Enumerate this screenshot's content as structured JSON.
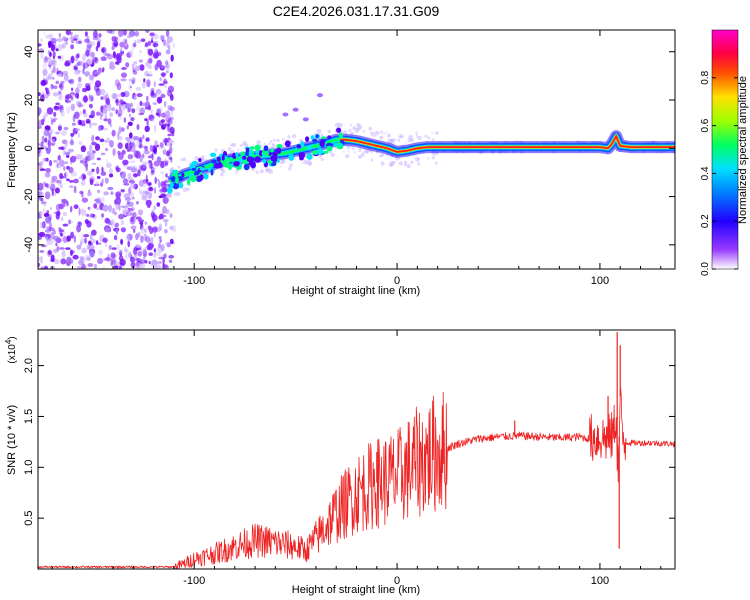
{
  "chart_data": [
    {
      "type": "heatmap",
      "title": "C2E4.2026.031.17.31.G09",
      "xlabel": "Height of straight line (km)",
      "ylabel": "Frequency (Hz)",
      "xlim": [
        -177,
        137
      ],
      "ylim": [
        -50,
        49
      ],
      "xticks": [
        -100,
        0,
        100
      ],
      "yticks": [
        -40,
        -20,
        0,
        20,
        40
      ],
      "colorbar": {
        "label": "Normalized spectral amplitude",
        "range": [
          0,
          1
        ],
        "ticks": [
          "0.0",
          "0.2",
          "0.4",
          "0.6",
          "0.8"
        ],
        "colormap": [
          "#ffffff",
          "#7a00ff",
          "#0000ff",
          "#00d8ff",
          "#00ff60",
          "#b0ff00",
          "#ffe000",
          "#ff3000",
          "#ff00aa"
        ]
      },
      "ridge": {
        "x": [
          -112,
          -105,
          -95,
          -85,
          -75,
          -65,
          -55,
          -45,
          -35,
          -30,
          -25,
          -20,
          -15,
          -10,
          -5,
          0,
          5,
          10,
          15,
          20,
          40,
          60,
          80,
          100,
          104,
          106,
          108,
          110,
          115,
          137
        ],
        "y": [
          -14,
          -11,
          -8,
          -5,
          -4,
          -3,
          -2,
          0,
          2,
          3.5,
          3.5,
          3,
          2,
          1,
          0,
          -1.5,
          -1,
          0,
          0.5,
          0.5,
          0.5,
          0.5,
          0.5,
          0.5,
          0,
          2,
          5,
          1,
          0.5,
          0.5
        ]
      }
    },
    {
      "type": "line",
      "xlabel": "Height of straight line (km)",
      "ylabel": "SNR (10 * v/v)",
      "scale_label": "(x10",
      "scale_exp": "4",
      "scale_close": ")",
      "xlim": [
        -177,
        137
      ],
      "ylim": [
        0,
        2.35
      ],
      "xticks": [
        -100,
        0,
        100
      ],
      "yticks": [
        0.5,
        1.0,
        1.5,
        2.0
      ],
      "color": "#ee2222",
      "envelope": {
        "x": [
          -177,
          -110,
          -105,
          -100,
          -90,
          -80,
          -70,
          -60,
          -50,
          -45,
          -40,
          -30,
          -20,
          -10,
          0,
          10,
          20,
          30,
          40,
          50,
          60,
          70,
          80,
          90,
          95,
          100,
          104,
          106,
          108,
          109,
          110,
          111,
          112,
          115,
          125,
          137
        ],
        "y": [
          0.02,
          0.02,
          0.05,
          0.1,
          0.15,
          0.22,
          0.28,
          0.26,
          0.22,
          0.18,
          0.3,
          0.55,
          0.75,
          0.85,
          0.9,
          1.05,
          1.15,
          1.23,
          1.28,
          1.3,
          1.31,
          1.3,
          1.29,
          1.3,
          1.28,
          1.3,
          1.28,
          1.3,
          1.5,
          0.9,
          1.7,
          1.3,
          1.25,
          1.24,
          1.24,
          1.23
        ]
      },
      "spikes": [
        {
          "x": 108.5,
          "y": 2.33
        },
        {
          "x": 110,
          "y": 2.2
        },
        {
          "x": 109.5,
          "y": 0.2
        },
        {
          "x": 104,
          "y": 1.7
        },
        {
          "x": 58,
          "y": 1.46
        },
        {
          "x": -10,
          "y": 1.15
        }
      ]
    }
  ]
}
